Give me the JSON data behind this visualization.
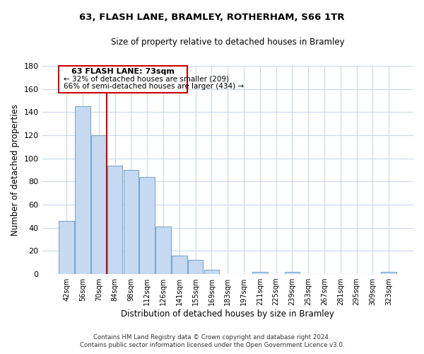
{
  "title": "63, FLASH LANE, BRAMLEY, ROTHERHAM, S66 1TR",
  "subtitle": "Size of property relative to detached houses in Bramley",
  "xlabel": "Distribution of detached houses by size in Bramley",
  "ylabel": "Number of detached properties",
  "bar_labels": [
    "42sqm",
    "56sqm",
    "70sqm",
    "84sqm",
    "98sqm",
    "112sqm",
    "126sqm",
    "141sqm",
    "155sqm",
    "169sqm",
    "183sqm",
    "197sqm",
    "211sqm",
    "225sqm",
    "239sqm",
    "253sqm",
    "267sqm",
    "281sqm",
    "295sqm",
    "309sqm",
    "323sqm"
  ],
  "bar_heights": [
    46,
    145,
    120,
    94,
    90,
    84,
    41,
    16,
    12,
    4,
    0,
    0,
    2,
    0,
    2,
    0,
    0,
    0,
    0,
    0,
    2
  ],
  "bar_color": "#c6d9f0",
  "bar_edge_color": "#7ca6cd",
  "vline_x": 2.5,
  "vline_color": "#cc0000",
  "ylim": [
    0,
    180
  ],
  "yticks": [
    0,
    20,
    40,
    60,
    80,
    100,
    120,
    140,
    160,
    180
  ],
  "annotation_title": "63 FLASH LANE: 73sqm",
  "annotation_line1": "← 32% of detached houses are smaller (209)",
  "annotation_line2": "66% of semi-detached houses are larger (434) →",
  "annotation_box_color": "#ffffff",
  "annotation_box_edge": "#cc0000",
  "footer_line1": "Contains HM Land Registry data © Crown copyright and database right 2024.",
  "footer_line2": "Contains public sector information licensed under the Open Government Licence v3.0.",
  "background_color": "#ffffff",
  "grid_color": "#c8d8ea"
}
